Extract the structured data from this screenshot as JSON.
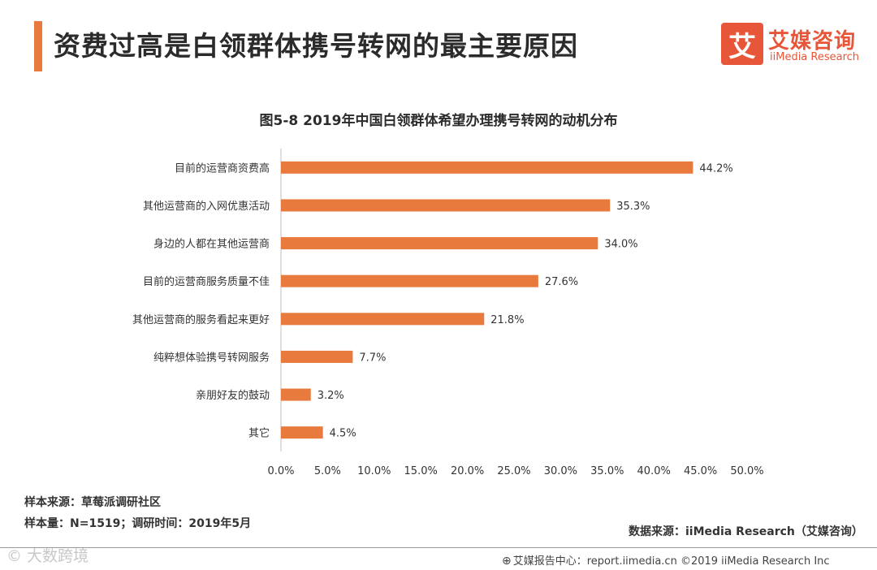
{
  "header": {
    "title": "资费过高是白领群体携号转网的最主要原因",
    "brand_mark": "艾",
    "brand_cn": "艾媒咨询",
    "brand_en": "iiMedia Research"
  },
  "colors": {
    "accent": "#e87a3d",
    "bar": "#e87a3d",
    "brand": "#e8563a"
  },
  "chart_data": {
    "type": "bar",
    "orientation": "horizontal",
    "title": "图5-8 2019年中国白领群体希望办理携号转网的动机分布",
    "categories": [
      "目前的运营商资费高",
      "其他运营商的入网优惠活动",
      "身边的人都在其他运营商",
      "目前的运营商服务质量不佳",
      "其他运营商的服务看起来更好",
      "纯粹想体验携号转网服务",
      "亲朋好友的鼓动",
      "其它"
    ],
    "values": [
      44.2,
      35.3,
      34.0,
      27.6,
      21.8,
      7.7,
      3.2,
      4.5
    ],
    "value_labels": [
      "44.2%",
      "35.3%",
      "34.0%",
      "27.6%",
      "21.8%",
      "7.7%",
      "3.2%",
      "4.5%"
    ],
    "xlim": [
      0,
      50
    ],
    "x_ticks": [
      "0.0%",
      "5.0%",
      "10.0%",
      "15.0%",
      "20.0%",
      "25.0%",
      "30.0%",
      "35.0%",
      "40.0%",
      "45.0%",
      "50.0%"
    ],
    "grid": false
  },
  "notes": {
    "sample_source": "样本来源：草莓派调研社区",
    "sample_size": "样本量：N=1519；调研时间：2019年5月",
    "data_source": "数据来源：iiMedia Research（艾媒咨询）"
  },
  "footer": {
    "watermark": "© 大数跨境",
    "report_center": "艾媒报告中心：report.iimedia.cn  ©2019  iiMedia Research Inc",
    "icon": "globe-icon"
  }
}
